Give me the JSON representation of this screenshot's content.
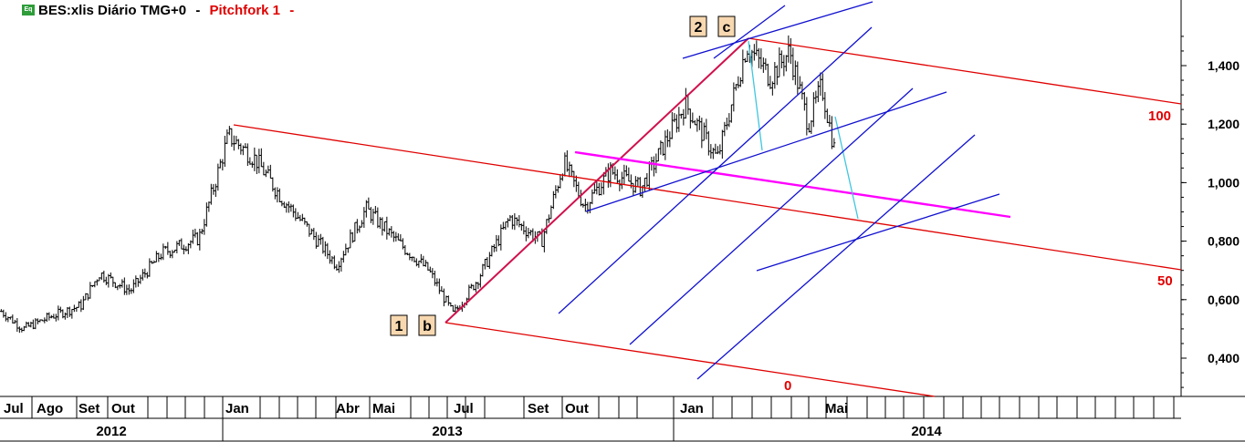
{
  "header": {
    "eq_badge": "Eq",
    "symbol": "BES:xlis Diário TMG+0",
    "separator1": "-",
    "study": "Pitchfork 1",
    "separator2": "-"
  },
  "chart_data": {
    "type": "bar",
    "style": "ohlc",
    "title": "BES:xlis Diário TMG+0",
    "ylim": [
      0.27,
      1.6
    ],
    "y_ticks": [
      "0,400",
      "0,600",
      "0,800",
      "1,000",
      "1,200",
      "1,400"
    ],
    "y_tick_values": [
      0.4,
      0.6,
      0.8,
      1.0,
      1.2,
      1.4
    ],
    "month_labels": [
      "Jul",
      "Ago",
      "Set",
      "Out",
      "Jan",
      "Abr",
      "Mai",
      "Jul",
      "Set",
      "Out",
      "Jan",
      "Mai"
    ],
    "year_labels": [
      "2012",
      "2013",
      "2014"
    ],
    "wave_labels": [
      "1",
      "b",
      "2",
      "c"
    ],
    "pitchfork_levels": [
      "100",
      "50",
      "0"
    ],
    "price_path": [
      {
        "date": "2012-07-02",
        "close": 0.56
      },
      {
        "date": "2012-07-20",
        "close": 0.5
      },
      {
        "date": "2012-08-10",
        "close": 0.54
      },
      {
        "date": "2012-09-05",
        "close": 0.58
      },
      {
        "date": "2012-09-20",
        "close": 0.69
      },
      {
        "date": "2012-10-15",
        "close": 0.63
      },
      {
        "date": "2012-11-10",
        "close": 0.76
      },
      {
        "date": "2012-12-10",
        "close": 0.81
      },
      {
        "date": "2013-01-03",
        "close": 1.16
      },
      {
        "date": "2013-01-25",
        "close": 1.08
      },
      {
        "date": "2013-02-15",
        "close": 0.95
      },
      {
        "date": "2013-03-05",
        "close": 0.86
      },
      {
        "date": "2013-04-01",
        "close": 0.72
      },
      {
        "date": "2013-04-25",
        "close": 0.91
      },
      {
        "date": "2013-05-20",
        "close": 0.8
      },
      {
        "date": "2013-06-15",
        "close": 0.7
      },
      {
        "date": "2013-07-05",
        "close": 0.55
      },
      {
        "date": "2013-07-25",
        "close": 0.67
      },
      {
        "date": "2013-08-20",
        "close": 0.88
      },
      {
        "date": "2013-09-15",
        "close": 0.8
      },
      {
        "date": "2013-10-03",
        "close": 1.07
      },
      {
        "date": "2013-10-20",
        "close": 0.92
      },
      {
        "date": "2013-11-10",
        "close": 1.04
      },
      {
        "date": "2013-12-05",
        "close": 0.98
      },
      {
        "date": "2014-01-10",
        "close": 1.27
      },
      {
        "date": "2014-02-05",
        "close": 1.08
      },
      {
        "date": "2014-03-01",
        "close": 1.47
      },
      {
        "date": "2014-03-20",
        "close": 1.36
      },
      {
        "date": "2014-04-05",
        "close": 1.45
      },
      {
        "date": "2014-04-20",
        "close": 1.2
      },
      {
        "date": "2014-05-01",
        "close": 1.33
      },
      {
        "date": "2014-05-12",
        "close": 1.1
      }
    ],
    "colors": {
      "price": "#000000",
      "pitchfork": "#e00000",
      "handle": "#d0104c",
      "fan": "#1010d0",
      "magenta_line": "#ff00ff",
      "cyan_line": "#3fc6e0",
      "label_box": "#f7d8b0"
    }
  }
}
